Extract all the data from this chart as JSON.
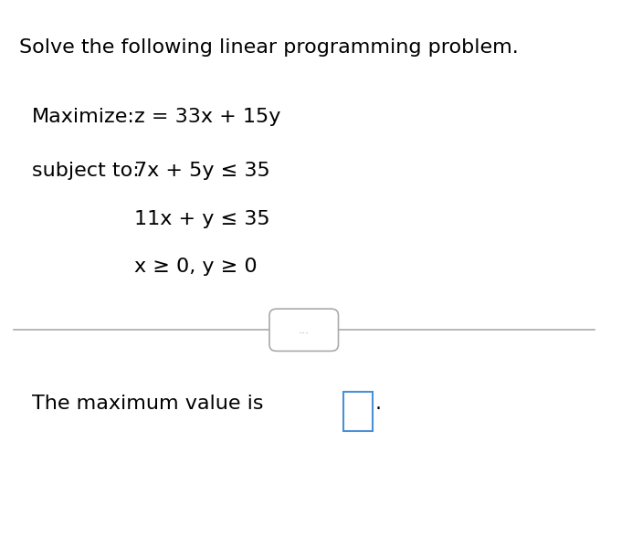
{
  "title": "Solve the following linear programming problem.",
  "line1_label": "Maximize:",
  "line1_expr": "z = 33x + 15y",
  "line2_label": "subject to:",
  "line2_expr": "7x + 5y ≤ 35",
  "line3_expr": "11x + y ≤ 35",
  "line4_expr": "x ≥ 0, y ≥ 0",
  "bottom_text": "The maximum value is",
  "separator_dots": "...",
  "bg_color": "#ffffff",
  "text_color": "#000000",
  "separator_color": "#aaaaaa",
  "box_color": "#4a90d9",
  "title_fontsize": 16,
  "body_fontsize": 16
}
